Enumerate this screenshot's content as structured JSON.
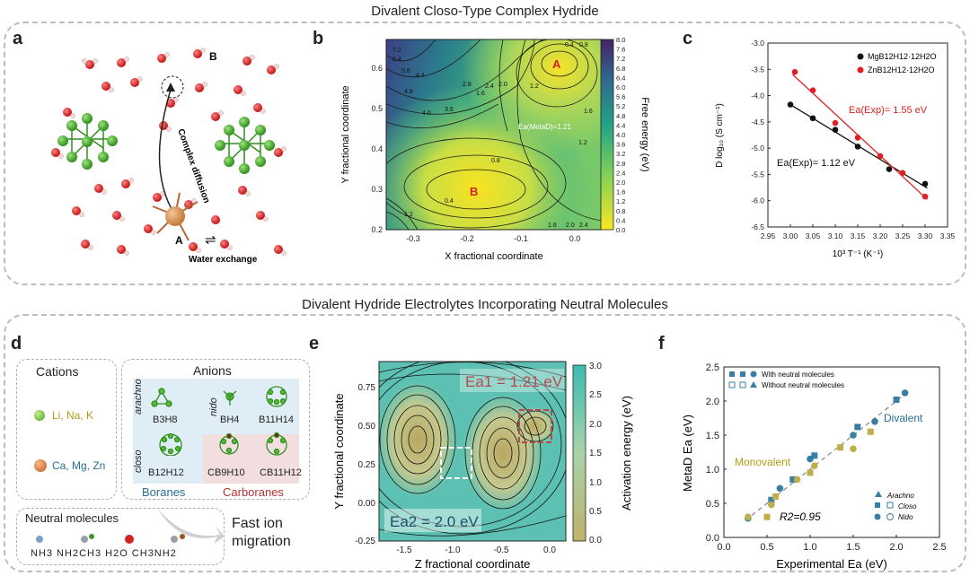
{
  "top_title": "Divalent Closo-Type Complex Hydride",
  "bottom_title": "Divalent Hydride Electrolytes Incorporating Neutral Molecules",
  "panels": {
    "a": "a",
    "b": "b",
    "c": "c",
    "d": "d",
    "e": "e",
    "f": "f"
  },
  "panel_a": {
    "site_a": "A",
    "site_b": "B",
    "complex_diffusion": "Complex diffusion",
    "water_exchange": "Water exchange",
    "eq_symbol": "⇌"
  },
  "panel_b": {
    "xlabel": "X fractional coordinate",
    "ylabel": "Y fractional coordinate",
    "cbar_label": "Free energy (eV)",
    "xticks": [
      "-0.3",
      "-0.2",
      "-0.1",
      "0.0"
    ],
    "yticks": [
      "0.2",
      "0.3",
      "0.4",
      "0.5",
      "0.6"
    ],
    "cbar_ticks": [
      "8.0",
      "7.6",
      "7.2",
      "6.8",
      "6.4",
      "6.0",
      "5.6",
      "5.2",
      "4.8",
      "4.4",
      "4.0",
      "3.6",
      "3.2",
      "2.8",
      "2.4",
      "2.0",
      "1.6",
      "1.2",
      "0.8",
      "0.4",
      "0.0"
    ],
    "site_a": "A",
    "site_b": "B",
    "annotation": "Ea(MetaD)=1.21",
    "contour_labels": [
      "0.4",
      "0.8",
      "1.2",
      "1.6",
      "2.0",
      "2.4",
      "2.8",
      "3.6",
      "4.0",
      "4.4",
      "4.8",
      "5.6",
      "6.4",
      "7.2",
      "1.2",
      "1.6",
      "0.8",
      "0.4",
      "1.2",
      "2.0",
      "2.4",
      "1.6"
    ]
  },
  "panel_c": {
    "xlabel": "10³ T⁻¹ (K⁻¹)",
    "ylabel": "D log₁₀ (S cm⁻¹)",
    "xticks": [
      "2.95",
      "3.00",
      "3.05",
      "3.10",
      "3.15",
      "3.20",
      "3.25",
      "3.30",
      "3.35"
    ],
    "yticks": [
      "-3.0",
      "-3.5",
      "-4.0",
      "-4.5",
      "-5.0",
      "-5.5",
      "-6.0",
      "-6.5"
    ],
    "legend": [
      "MgB12H12·12H2O",
      "ZnB12H12·12H2O"
    ],
    "ann_zn": "Ea(Exp)= 1.55 eV",
    "ann_mg": "Ea(Exp)= 1.12 eV"
  },
  "panel_d": {
    "cations_title": "Cations",
    "cation1": "Li, Na, K",
    "cation2": "Ca, Mg, Zn",
    "anions_title": "Anions",
    "arachno": "arachno",
    "nido": "nido",
    "closo": "closo",
    "b3h8": "B3H8",
    "bh4": "BH4",
    "b11h14": "B11H14",
    "b12h12": "B12H12",
    "cb9h10": "CB9H10",
    "cb11h12": "CB11H12",
    "boranes": "Boranes",
    "carboranes": "Carboranes",
    "neutral_title": "Neutral molecules",
    "neutral_list": "NH3 NH2CH3 H2O CH3NH2",
    "fast_ion": "Fast ion migration"
  },
  "panel_e": {
    "xlabel": "Z fractional coordinate",
    "ylabel": "Y fractional coordinate",
    "cbar_label": "Activation energy (eV)",
    "xticks": [
      "-1.5",
      "-1.0",
      "-0.5",
      "0.0"
    ],
    "yticks": [
      "0.75",
      "0.50",
      "0.25",
      "0.00",
      "-0.25"
    ],
    "cbar_ticks": [
      "3.0",
      "2.5",
      "2.0",
      "1.5",
      "1.0",
      "0.5",
      "0.0"
    ],
    "ea1": "Ea1 = 1.21 eV",
    "ea2": "Ea2 = 2.0 eV"
  },
  "panel_f": {
    "xlabel": "Experimental Ea (eV)",
    "ylabel": "MetaD Ea (eV)",
    "xticks": [
      "0.0",
      "0.5",
      "1.0",
      "1.5",
      "2.0",
      "2.5"
    ],
    "yticks": [
      "0.0",
      "0.5",
      "1.0",
      "1.5",
      "2.0",
      "2.5"
    ],
    "legend_with": "With neutral molecules",
    "legend_without": "Without neutral molecules",
    "divalent": "Divalent",
    "monovalent": "Monovalent",
    "r2": "R2=0.95",
    "leg_arachno": "Arachno",
    "leg_closo": "Closo",
    "leg_nido": "Nido"
  },
  "chart_data": [
    {
      "type": "scatter",
      "panel": "c",
      "xlabel": "10³ T⁻¹ (K⁻¹)",
      "ylabel": "D log₁₀ (S cm⁻¹)",
      "xlim": [
        2.95,
        3.35
      ],
      "ylim": [
        -6.5,
        -3.0
      ],
      "series": [
        {
          "name": "MgB12H12·12H2O",
          "color": "#111111",
          "x": [
            3.0,
            3.05,
            3.1,
            3.15,
            3.22,
            3.3
          ],
          "y": [
            -4.17,
            -4.43,
            -4.65,
            -4.97,
            -5.4,
            -5.68
          ]
        },
        {
          "name": "ZnB12H12·12H2O",
          "color": "#e02020",
          "x": [
            3.01,
            3.05,
            3.1,
            3.15,
            3.2,
            3.25,
            3.3
          ],
          "y": [
            -3.55,
            -3.9,
            -4.52,
            -4.8,
            -5.15,
            -5.47,
            -5.92
          ]
        }
      ]
    },
    {
      "type": "scatter",
      "panel": "f",
      "xlabel": "Experimental Ea (eV)",
      "ylabel": "MetaD Ea (eV)",
      "xlim": [
        0,
        2.5
      ],
      "ylim": [
        0,
        2.5
      ],
      "series": [
        {
          "name": "With neutral molecules",
          "color": "#3a7ea3",
          "x": [
            0.28,
            0.55,
            0.65,
            0.8,
            1.0,
            1.05,
            1.5,
            1.55,
            1.75,
            2.0,
            2.1
          ],
          "y": [
            0.28,
            0.55,
            0.72,
            0.85,
            1.15,
            1.2,
            1.5,
            1.62,
            1.7,
            2.02,
            2.12
          ]
        },
        {
          "name": "Without neutral molecules",
          "color": "#bfae4a",
          "x": [
            0.28,
            0.5,
            0.55,
            0.6,
            0.85,
            1.0,
            1.05,
            1.35,
            1.5,
            1.7
          ],
          "y": [
            0.3,
            0.3,
            0.48,
            0.6,
            0.85,
            0.95,
            1.05,
            1.32,
            1.3,
            1.55
          ]
        }
      ]
    }
  ]
}
